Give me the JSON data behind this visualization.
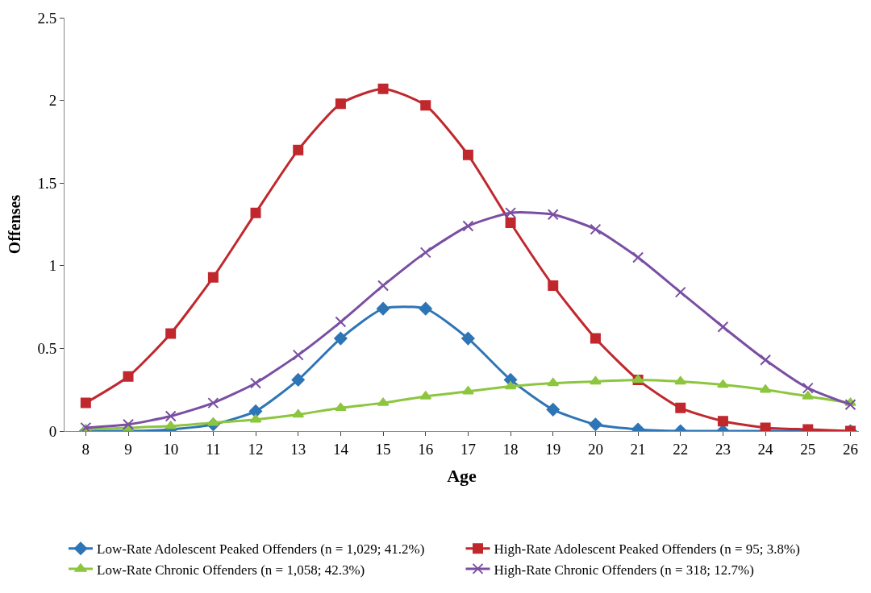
{
  "chart_data": {
    "type": "line",
    "xlabel": "Age",
    "ylabel": "Offenses",
    "x": [
      8,
      9,
      10,
      11,
      12,
      13,
      14,
      15,
      16,
      17,
      18,
      19,
      20,
      21,
      22,
      23,
      24,
      25,
      26
    ],
    "xlim": [
      7.5,
      26.2
    ],
    "xticks": [
      8,
      9,
      10,
      11,
      12,
      13,
      14,
      15,
      16,
      17,
      18,
      19,
      20,
      21,
      22,
      23,
      24,
      25,
      26
    ],
    "ylim": [
      0,
      2.5
    ],
    "yticks": [
      0,
      0.5,
      1,
      1.5,
      2,
      2.5
    ],
    "legend": "bottom",
    "series": [
      {
        "name": "Low-Rate Adolescent Peaked Offenders (n = 1,029; 41.2%)",
        "color": "#2e75b6",
        "marker": "diamond",
        "values": [
          0,
          0,
          0.01,
          0.04,
          0.12,
          0.31,
          0.56,
          0.74,
          0.74,
          0.56,
          0.31,
          0.13,
          0.04,
          0.01,
          0,
          0,
          0,
          0,
          0
        ]
      },
      {
        "name": "High-Rate Adolescent Peaked Offenders (n = 95; 3.8%)",
        "color": "#c0282d",
        "marker": "square",
        "values": [
          0.17,
          0.33,
          0.59,
          0.93,
          1.32,
          1.7,
          1.98,
          2.07,
          1.97,
          1.67,
          1.26,
          0.88,
          0.56,
          0.31,
          0.14,
          0.06,
          0.02,
          0.01,
          0
        ]
      },
      {
        "name": "Low-Rate Chronic Offenders (n = 1,058; 42.3%)",
        "color": "#8cc63e",
        "marker": "triangle",
        "values": [
          0.01,
          0.02,
          0.03,
          0.05,
          0.07,
          0.1,
          0.14,
          0.17,
          0.21,
          0.24,
          0.27,
          0.29,
          0.3,
          0.31,
          0.3,
          0.28,
          0.25,
          0.21,
          0.17
        ]
      },
      {
        "name": "High-Rate Chronic Offenders (n = 318; 12.7%)",
        "color": "#7a4fa3",
        "marker": "cross",
        "values": [
          0.02,
          0.04,
          0.09,
          0.17,
          0.29,
          0.46,
          0.66,
          0.88,
          1.08,
          1.24,
          1.32,
          1.31,
          1.22,
          1.05,
          0.84,
          0.63,
          0.43,
          0.26,
          0.16
        ]
      }
    ]
  }
}
